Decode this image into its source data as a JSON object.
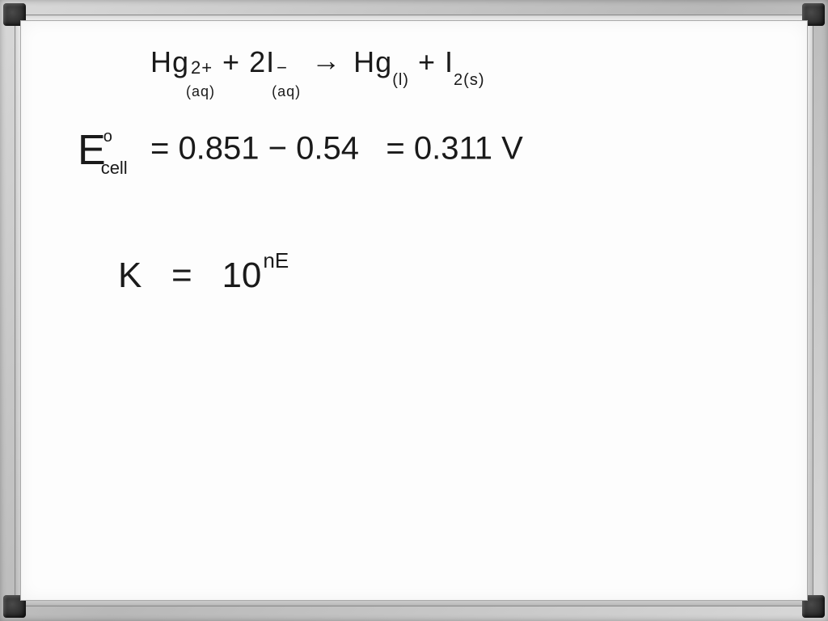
{
  "equation": {
    "reactant1_species": "Hg",
    "reactant1_charge": "2+",
    "reactant1_phase": "(aq)",
    "plus1": "+",
    "reactant2_coeff": "2",
    "reactant2_species": "I",
    "reactant2_charge": "−",
    "reactant2_phase": "(aq)",
    "arrow": "→",
    "product1_species": "Hg",
    "product1_phase": "(l)",
    "plus2": "+",
    "product2_species": "I",
    "product2_sub": "2",
    "product2_phase": "(s)"
  },
  "ecell": {
    "symbol": "E",
    "subscript": "cell",
    "superscript": "o",
    "equals": "=",
    "val1": "0.851",
    "minus": "−",
    "val2": "0.54",
    "equals2": "=",
    "result": "0.311",
    "unit": "V"
  },
  "kexpr": {
    "K": "K",
    "equals": "=",
    "base": "10",
    "exponent": "nE"
  },
  "style": {
    "ink_color": "#1a1a1a",
    "board_bg": "#fdfdfd",
    "frame_light": "#d8d8d8",
    "frame_dark": "#b8b8b8",
    "corner_color": "#1a1a1a",
    "font_family": "Comic Sans MS"
  }
}
